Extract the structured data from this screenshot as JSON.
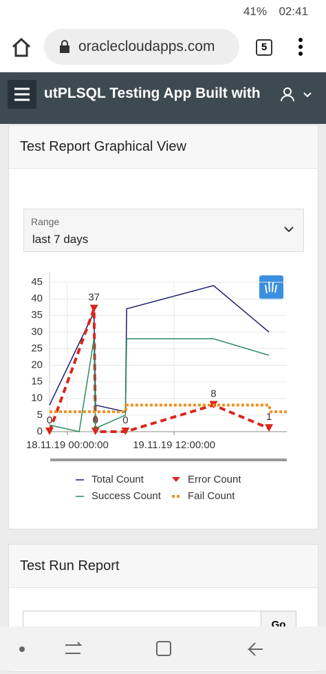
{
  "status_bar": {
    "battery": "41%",
    "time": "02:41"
  },
  "browser": {
    "url": "oraclecloudapps.com",
    "tabs": "5"
  },
  "app": {
    "title": "utPLSQL Testing App Built with"
  },
  "region1": {
    "title": "Test Report Graphical View",
    "select_label": "Range",
    "select_value": "last 7 days"
  },
  "chart_data": {
    "type": "line",
    "xlim": [
      -6,
      74
    ],
    "xticks": [
      {
        "value": 0,
        "label": "18.11.19 00:00:00"
      },
      {
        "value": 36,
        "label": "19.11.19 12:00:00"
      }
    ],
    "ylim": [
      0,
      45
    ],
    "yticks": [
      0,
      5,
      10,
      15,
      20,
      25,
      30,
      35,
      40,
      45
    ],
    "grid": true,
    "series": [
      {
        "name": "Total Count",
        "color": "#1a1a6e",
        "style": "solid",
        "x": [
          -6,
          9,
          9.5,
          19.6,
          20,
          49.3,
          68
        ],
        "values": [
          8,
          36,
          8,
          6,
          37,
          44,
          30
        ]
      },
      {
        "name": "Error Count",
        "color": "#d9261c",
        "style": "dashed",
        "marker": "triangle",
        "x": [
          -6,
          9,
          9.5,
          19.6,
          49.3,
          68
        ],
        "values": [
          0,
          37,
          0,
          0,
          8,
          1
        ]
      },
      {
        "name": "Success Count",
        "color": "#2a8a5c",
        "style": "solid",
        "x": [
          -6,
          4,
          9,
          9.5,
          19.6,
          20,
          49.3,
          68
        ],
        "values": [
          2,
          0,
          28,
          1,
          5,
          28,
          28,
          23
        ]
      },
      {
        "name": "Fail Count",
        "color": "#f0901e",
        "style": "dotted",
        "x": [
          -6,
          19.6,
          20,
          68,
          68.5,
          74
        ],
        "values": [
          6,
          6,
          8,
          8,
          6,
          6
        ]
      }
    ]
  },
  "region2": {
    "title": "Test Run Report",
    "button": "Go"
  }
}
